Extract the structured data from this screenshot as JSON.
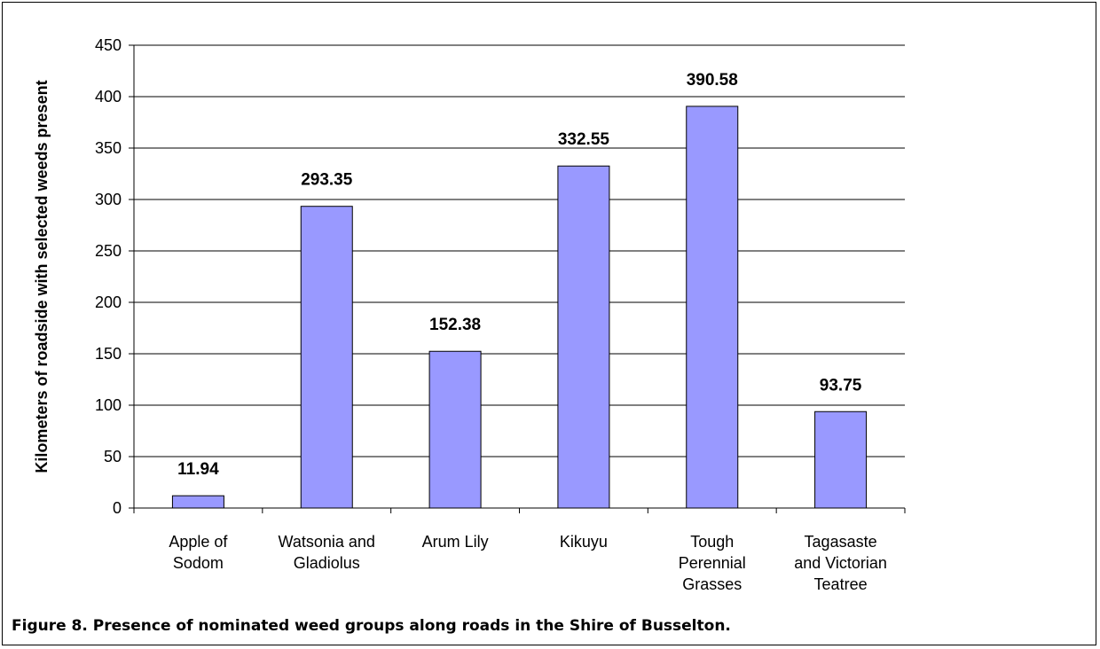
{
  "caption": "Figure 8. Presence of nominated weed groups along roads in the Shire of Busselton.",
  "chart_data": {
    "type": "bar",
    "title": "",
    "xlabel": "",
    "ylabel": "Kilometers of roadside with selected weeds present",
    "categories": [
      [
        "Apple of",
        "Sodom"
      ],
      [
        "Watsonia and",
        "Gladiolus"
      ],
      [
        "Arum Lily"
      ],
      [
        "Kikuyu"
      ],
      [
        "Tough",
        "Perennial",
        "Grasses"
      ],
      [
        "Tagasaste",
        "and Victorian",
        "Teatree"
      ]
    ],
    "values": [
      11.94,
      293.35,
      152.38,
      332.55,
      390.58,
      93.75
    ],
    "value_labels": [
      "11.94",
      "293.35",
      "152.38",
      "332.55",
      "390.58",
      "93.75"
    ],
    "ylim": [
      0,
      450
    ],
    "yticks": [
      0,
      50,
      100,
      150,
      200,
      250,
      300,
      350,
      400,
      450
    ],
    "grid": true,
    "legend": "none",
    "bar_color": "#9999ff",
    "bar_edge_color": "#000000"
  }
}
